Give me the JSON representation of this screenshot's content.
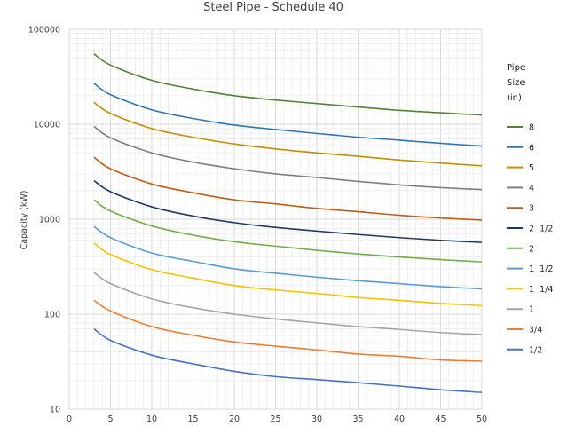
{
  "chart_data": {
    "type": "line",
    "title": "Steel Pipe - Schedule 40",
    "xlabel": "",
    "ylabel": "Capacity (kW)",
    "xlim": [
      0,
      50
    ],
    "ylim": [
      10,
      100000
    ],
    "yscale": "log",
    "grid": true,
    "x_ticks": [
      "0",
      "5",
      "10",
      "15",
      "20",
      "25",
      "30",
      "35",
      "40",
      "45",
      "50"
    ],
    "y_ticks": [
      "10",
      "100",
      "1000",
      "10000",
      "100000"
    ],
    "legend_title": [
      "Pipe",
      "Size",
      "(in)"
    ],
    "legend_position": "right",
    "x": [
      3,
      5,
      10,
      15,
      20,
      25,
      30,
      35,
      40,
      45,
      50
    ],
    "series": [
      {
        "name": "8",
        "color": "#548235",
        "values": [
          55000,
          42000,
          29000,
          23500,
          20000,
          18000,
          16500,
          15200,
          14000,
          13200,
          12500
        ]
      },
      {
        "name": "6",
        "color": "#2E75B6",
        "values": [
          27000,
          20500,
          14200,
          11500,
          9800,
          8800,
          8000,
          7300,
          6800,
          6300,
          5900
        ]
      },
      {
        "name": "5",
        "color": "#BF9000",
        "values": [
          17000,
          13000,
          9000,
          7300,
          6200,
          5500,
          5000,
          4600,
          4200,
          3900,
          3650
        ]
      },
      {
        "name": "4",
        "color": "#7F7F7F",
        "values": [
          9500,
          7200,
          5000,
          4000,
          3400,
          3000,
          2750,
          2500,
          2300,
          2150,
          2050
        ]
      },
      {
        "name": "3",
        "color": "#C55A11",
        "values": [
          4500,
          3400,
          2350,
          1900,
          1600,
          1450,
          1300,
          1200,
          1100,
          1030,
          980
        ]
      },
      {
        "name": "2  1/2",
        "color": "#1F3864",
        "values": [
          2550,
          1950,
          1350,
          1080,
          920,
          820,
          750,
          690,
          640,
          600,
          570
        ]
      },
      {
        "name": "2",
        "color": "#70AD47",
        "values": [
          1600,
          1220,
          850,
          680,
          580,
          520,
          470,
          430,
          400,
          375,
          355
        ]
      },
      {
        "name": "1  1/2",
        "color": "#5B9BD5",
        "values": [
          840,
          640,
          440,
          360,
          300,
          270,
          245,
          225,
          210,
          195,
          185
        ]
      },
      {
        "name": "1  1/4",
        "color": "#FFC000",
        "values": [
          560,
          425,
          295,
          240,
          200,
          180,
          165,
          150,
          140,
          130,
          123
        ]
      },
      {
        "name": "1",
        "color": "#A5A5A5",
        "values": [
          275,
          210,
          145,
          117,
          100,
          89,
          81,
          74,
          69,
          64,
          61
        ]
      },
      {
        "name": "3/4",
        "color": "#ED7D31",
        "values": [
          140,
          108,
          74,
          60,
          51,
          46,
          42,
          38,
          36,
          33,
          32
        ]
      },
      {
        "name": "1/2",
        "color": "#4472C4",
        "values": [
          70,
          53,
          37,
          30,
          25,
          22,
          20.5,
          19,
          17.5,
          16,
          15
        ]
      }
    ]
  }
}
